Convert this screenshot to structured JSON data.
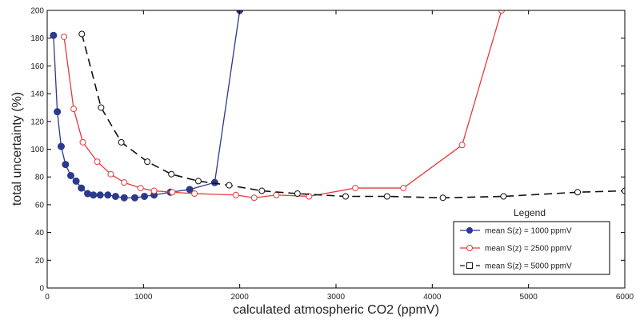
{
  "chart_data": {
    "type": "line",
    "title": "",
    "xlabel": "calculated atmospheric CO2 (ppmV)",
    "ylabel": "total uncertainty (%)",
    "xlim": [
      0,
      6000
    ],
    "ylim": [
      0,
      200
    ],
    "x_ticks": [
      0,
      1000,
      2000,
      3000,
      4000,
      5000,
      6000
    ],
    "y_ticks": [
      0,
      20,
      40,
      60,
      80,
      100,
      120,
      140,
      160,
      180,
      200
    ],
    "grid": false,
    "legend": {
      "title": "Legend",
      "placement": "bottom-right"
    },
    "series": [
      {
        "name": "mean S(z) = 1000 ppmV",
        "color": "#2b3a8c",
        "line": "solid",
        "marker": "filled-circle",
        "x": [
          65,
          105,
          145,
          190,
          245,
          300,
          355,
          420,
          480,
          550,
          630,
          710,
          800,
          910,
          1010,
          1110,
          1280,
          1480,
          1740,
          2000
        ],
        "y": [
          182,
          127,
          102,
          89,
          81,
          77,
          72,
          68,
          67,
          67,
          67,
          66,
          65,
          65,
          66,
          67,
          69,
          71,
          76,
          200
        ]
      },
      {
        "name": "mean S(z) = 2500 ppmV",
        "color": "#e8393b",
        "line": "solid",
        "marker": "open-circle",
        "x": [
          175,
          275,
          370,
          520,
          660,
          800,
          970,
          1110,
          1300,
          1530,
          1960,
          2150,
          2380,
          2720,
          3200,
          3700,
          4310,
          4720
        ],
        "y": [
          181,
          129,
          105,
          91,
          82,
          76,
          72,
          70,
          69,
          68,
          67,
          65,
          67,
          66,
          72,
          72,
          103,
          200
        ]
      },
      {
        "name": "mean S(z) = 5000 ppmV",
        "color": "#111111",
        "line": "dashed",
        "marker": "open-circle",
        "x": [
          360,
          560,
          770,
          1040,
          1290,
          1570,
          1890,
          2230,
          2600,
          3100,
          3530,
          4110,
          4740,
          5510,
          6000
        ],
        "y": [
          183,
          130,
          105,
          91,
          82,
          77,
          74,
          70,
          68,
          66,
          66,
          65,
          66,
          69,
          70
        ]
      }
    ]
  }
}
